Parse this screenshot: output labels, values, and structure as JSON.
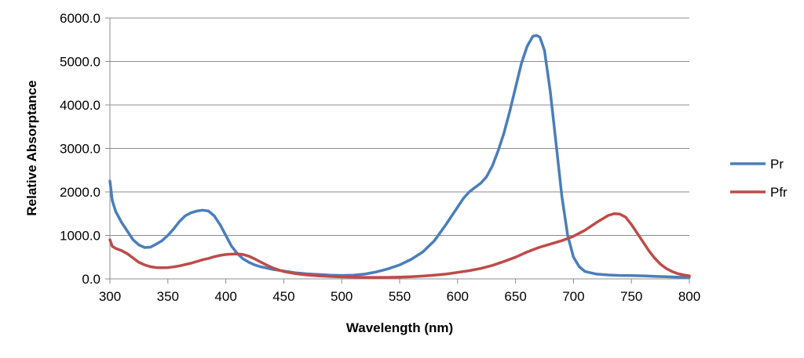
{
  "chart_data": {
    "type": "line",
    "title": "",
    "xlabel": "Wavelength (nm)",
    "ylabel": "Relative Absorptance",
    "xlim": [
      300,
      800
    ],
    "ylim": [
      0,
      6000
    ],
    "x_ticks": [
      "300",
      "350",
      "400",
      "450",
      "500",
      "550",
      "600",
      "650",
      "700",
      "750",
      "800"
    ],
    "y_ticks": [
      "0.0",
      "1000.0",
      "2000.0",
      "3000.0",
      "4000.0",
      "5000.0",
      "6000.0"
    ],
    "grid": true,
    "legend": "right",
    "series": [
      {
        "name": "Pr",
        "color": "#4a7ebb",
        "points": [
          [
            300,
            2250
          ],
          [
            302,
            1800
          ],
          [
            305,
            1550
          ],
          [
            310,
            1300
          ],
          [
            315,
            1100
          ],
          [
            320,
            900
          ],
          [
            325,
            780
          ],
          [
            330,
            720
          ],
          [
            335,
            730
          ],
          [
            340,
            800
          ],
          [
            345,
            880
          ],
          [
            350,
            1000
          ],
          [
            355,
            1150
          ],
          [
            360,
            1320
          ],
          [
            365,
            1450
          ],
          [
            370,
            1520
          ],
          [
            375,
            1560
          ],
          [
            380,
            1580
          ],
          [
            385,
            1560
          ],
          [
            390,
            1450
          ],
          [
            395,
            1250
          ],
          [
            400,
            1000
          ],
          [
            405,
            750
          ],
          [
            410,
            580
          ],
          [
            415,
            460
          ],
          [
            420,
            380
          ],
          [
            425,
            320
          ],
          [
            430,
            280
          ],
          [
            435,
            250
          ],
          [
            440,
            220
          ],
          [
            450,
            180
          ],
          [
            460,
            140
          ],
          [
            470,
            115
          ],
          [
            480,
            100
          ],
          [
            490,
            85
          ],
          [
            500,
            80
          ],
          [
            510,
            85
          ],
          [
            520,
            110
          ],
          [
            530,
            160
          ],
          [
            540,
            230
          ],
          [
            550,
            320
          ],
          [
            560,
            450
          ],
          [
            570,
            620
          ],
          [
            580,
            880
          ],
          [
            590,
            1250
          ],
          [
            600,
            1650
          ],
          [
            605,
            1850
          ],
          [
            610,
            2000
          ],
          [
            615,
            2100
          ],
          [
            620,
            2200
          ],
          [
            625,
            2350
          ],
          [
            630,
            2600
          ],
          [
            635,
            2950
          ],
          [
            640,
            3350
          ],
          [
            645,
            3850
          ],
          [
            650,
            4400
          ],
          [
            655,
            4950
          ],
          [
            660,
            5350
          ],
          [
            665,
            5580
          ],
          [
            668,
            5600
          ],
          [
            671,
            5560
          ],
          [
            675,
            5250
          ],
          [
            680,
            4300
          ],
          [
            685,
            3100
          ],
          [
            690,
            1900
          ],
          [
            695,
            1000
          ],
          [
            700,
            500
          ],
          [
            705,
            280
          ],
          [
            710,
            170
          ],
          [
            720,
            110
          ],
          [
            730,
            90
          ],
          [
            740,
            80
          ],
          [
            750,
            75
          ],
          [
            760,
            70
          ],
          [
            770,
            60
          ],
          [
            780,
            50
          ],
          [
            790,
            40
          ],
          [
            800,
            35
          ]
        ]
      },
      {
        "name": "Pfr",
        "color": "#be4b48",
        "points": [
          [
            300,
            900
          ],
          [
            302,
            750
          ],
          [
            305,
            700
          ],
          [
            310,
            650
          ],
          [
            315,
            580
          ],
          [
            320,
            480
          ],
          [
            325,
            380
          ],
          [
            330,
            320
          ],
          [
            335,
            280
          ],
          [
            340,
            260
          ],
          [
            345,
            255
          ],
          [
            350,
            260
          ],
          [
            355,
            275
          ],
          [
            360,
            300
          ],
          [
            365,
            330
          ],
          [
            370,
            360
          ],
          [
            375,
            400
          ],
          [
            380,
            440
          ],
          [
            385,
            470
          ],
          [
            390,
            510
          ],
          [
            395,
            540
          ],
          [
            400,
            560
          ],
          [
            405,
            570
          ],
          [
            410,
            575
          ],
          [
            415,
            560
          ],
          [
            420,
            520
          ],
          [
            425,
            460
          ],
          [
            430,
            390
          ],
          [
            435,
            320
          ],
          [
            440,
            260
          ],
          [
            445,
            210
          ],
          [
            450,
            170
          ],
          [
            460,
            120
          ],
          [
            470,
            90
          ],
          [
            480,
            70
          ],
          [
            490,
            55
          ],
          [
            500,
            45
          ],
          [
            510,
            40
          ],
          [
            520,
            35
          ],
          [
            530,
            35
          ],
          [
            540,
            35
          ],
          [
            550,
            40
          ],
          [
            560,
            50
          ],
          [
            570,
            65
          ],
          [
            580,
            85
          ],
          [
            590,
            110
          ],
          [
            600,
            150
          ],
          [
            610,
            190
          ],
          [
            620,
            240
          ],
          [
            630,
            310
          ],
          [
            640,
            400
          ],
          [
            650,
            500
          ],
          [
            660,
            620
          ],
          [
            670,
            720
          ],
          [
            680,
            800
          ],
          [
            690,
            880
          ],
          [
            700,
            980
          ],
          [
            710,
            1120
          ],
          [
            720,
            1300
          ],
          [
            730,
            1460
          ],
          [
            735,
            1500
          ],
          [
            740,
            1490
          ],
          [
            745,
            1420
          ],
          [
            750,
            1250
          ],
          [
            755,
            1050
          ],
          [
            760,
            850
          ],
          [
            765,
            650
          ],
          [
            770,
            480
          ],
          [
            775,
            340
          ],
          [
            780,
            240
          ],
          [
            785,
            170
          ],
          [
            790,
            120
          ],
          [
            795,
            90
          ],
          [
            800,
            70
          ]
        ]
      }
    ]
  }
}
